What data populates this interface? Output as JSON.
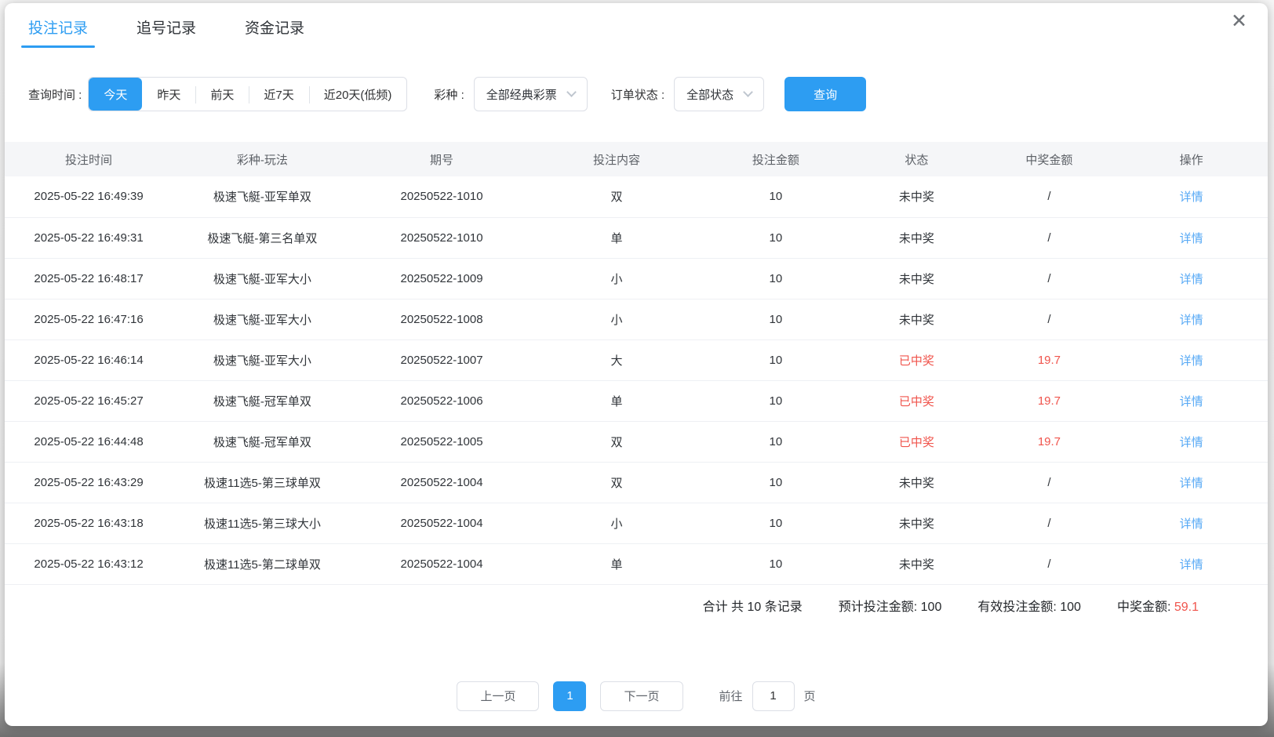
{
  "window": {
    "close_icon": "✕"
  },
  "tabs": [
    {
      "label": "投注记录",
      "active": true
    },
    {
      "label": "追号记录",
      "active": false
    },
    {
      "label": "资金记录",
      "active": false
    }
  ],
  "filters": {
    "time_label": "查询时间 :",
    "time_options": [
      {
        "label": "今天",
        "active": true
      },
      {
        "label": "昨天",
        "active": false
      },
      {
        "label": "前天",
        "active": false
      },
      {
        "label": "近7天",
        "active": false
      },
      {
        "label": "近20天(低频)",
        "active": false
      }
    ],
    "lottery_label": "彩种 :",
    "lottery_value": "全部经典彩票",
    "order_status_label": "订单状态 :",
    "order_status_value": "全部状态",
    "query_button": "查询"
  },
  "table": {
    "headers": [
      "投注时间",
      "彩种-玩法",
      "期号",
      "投注内容",
      "投注金额",
      "状态",
      "中奖金额",
      "操作"
    ],
    "action_label": "详情",
    "rows": [
      {
        "time": "2025-05-22 16:49:39",
        "game": "极速飞艇-亚军单双",
        "issue": "20250522-1010",
        "content": "双",
        "amount": "10",
        "status": "未中奖",
        "won": false,
        "win": "/"
      },
      {
        "time": "2025-05-22 16:49:31",
        "game": "极速飞艇-第三名单双",
        "issue": "20250522-1010",
        "content": "单",
        "amount": "10",
        "status": "未中奖",
        "won": false,
        "win": "/"
      },
      {
        "time": "2025-05-22 16:48:17",
        "game": "极速飞艇-亚军大小",
        "issue": "20250522-1009",
        "content": "小",
        "amount": "10",
        "status": "未中奖",
        "won": false,
        "win": "/"
      },
      {
        "time": "2025-05-22 16:47:16",
        "game": "极速飞艇-亚军大小",
        "issue": "20250522-1008",
        "content": "小",
        "amount": "10",
        "status": "未中奖",
        "won": false,
        "win": "/"
      },
      {
        "time": "2025-05-22 16:46:14",
        "game": "极速飞艇-亚军大小",
        "issue": "20250522-1007",
        "content": "大",
        "amount": "10",
        "status": "已中奖",
        "won": true,
        "win": "19.7"
      },
      {
        "time": "2025-05-22 16:45:27",
        "game": "极速飞艇-冠军单双",
        "issue": "20250522-1006",
        "content": "单",
        "amount": "10",
        "status": "已中奖",
        "won": true,
        "win": "19.7"
      },
      {
        "time": "2025-05-22 16:44:48",
        "game": "极速飞艇-冠军单双",
        "issue": "20250522-1005",
        "content": "双",
        "amount": "10",
        "status": "已中奖",
        "won": true,
        "win": "19.7"
      },
      {
        "time": "2025-05-22 16:43:29",
        "game": "极速11选5-第三球单双",
        "issue": "20250522-1004",
        "content": "双",
        "amount": "10",
        "status": "未中奖",
        "won": false,
        "win": "/"
      },
      {
        "time": "2025-05-22 16:43:18",
        "game": "极速11选5-第三球大小",
        "issue": "20250522-1004",
        "content": "小",
        "amount": "10",
        "status": "未中奖",
        "won": false,
        "win": "/"
      },
      {
        "time": "2025-05-22 16:43:12",
        "game": "极速11选5-第二球单双",
        "issue": "20250522-1004",
        "content": "单",
        "amount": "10",
        "status": "未中奖",
        "won": false,
        "win": "/"
      }
    ]
  },
  "summary": {
    "total_text": "合计 共 10 条记录",
    "expected_label": "预计投注金额: ",
    "expected_value": "100",
    "valid_label": "有效投注金额: ",
    "valid_value": "100",
    "win_label": "中奖金额: ",
    "win_value": "59.1"
  },
  "pagination": {
    "prev": "上一页",
    "current_page": "1",
    "next": "下一页",
    "goto_label": "前往",
    "goto_value": "1",
    "page_unit": "页"
  },
  "colors": {
    "primary_blue": "#2d9df2",
    "link_blue": "#55a8f5",
    "win_red": "#f0544c",
    "header_bg": "#f5f6f8"
  }
}
